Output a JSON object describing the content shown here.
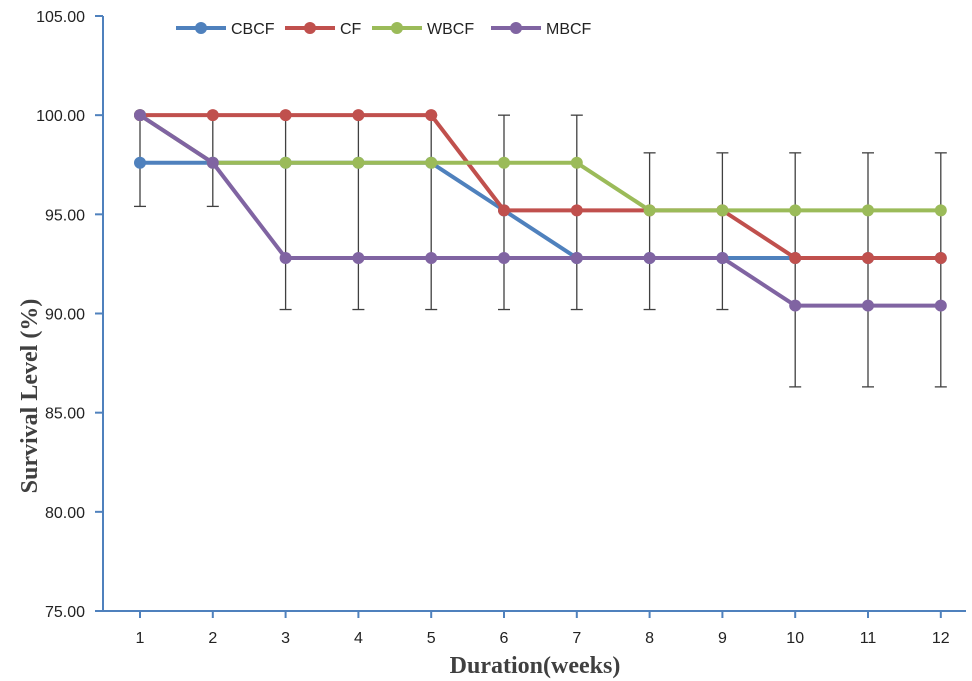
{
  "chart_data": {
    "type": "line",
    "title": "",
    "xlabel": "Duration(weeks)",
    "ylabel": "Survival Level (%)",
    "x": [
      1,
      2,
      3,
      4,
      5,
      6,
      7,
      8,
      9,
      10,
      11,
      12
    ],
    "x_tick_labels": [
      "1",
      "2",
      "3",
      "4",
      "5",
      "6",
      "7",
      "8",
      "9",
      "10",
      "11",
      "12"
    ],
    "ylim": [
      75,
      105
    ],
    "y_ticks": [
      75,
      80,
      85,
      90,
      95,
      100,
      105
    ],
    "y_tick_labels": [
      "75.00",
      "80.00",
      "85.00",
      "90.00",
      "95.00",
      "100.00",
      "105.00"
    ],
    "grid": false,
    "legend_position": "top",
    "series": [
      {
        "name": "CBCF",
        "color": "#4f81bd",
        "values": [
          97.6,
          97.6,
          97.6,
          97.6,
          97.6,
          95.2,
          92.8,
          92.8,
          92.8,
          92.8,
          92.8,
          92.8
        ]
      },
      {
        "name": "CF",
        "color": "#c0504d",
        "values": [
          100,
          100,
          100,
          100,
          100,
          95.2,
          95.2,
          95.2,
          95.2,
          92.8,
          92.8,
          92.8
        ]
      },
      {
        "name": "WBCF",
        "color": "#9bbb59",
        "values": [
          100,
          97.6,
          97.6,
          97.6,
          97.6,
          97.6,
          97.6,
          95.2,
          95.2,
          95.2,
          95.2,
          95.2
        ]
      },
      {
        "name": "MBCF",
        "color": "#8064a2",
        "values": [
          100,
          97.6,
          92.8,
          92.8,
          92.8,
          92.8,
          92.8,
          92.8,
          92.8,
          90.4,
          90.4,
          90.4
        ]
      }
    ],
    "error_bars": {
      "color": "#404040",
      "ranges": [
        [
          95.4,
          100.0
        ],
        [
          95.4,
          100.0
        ],
        [
          90.2,
          100.0
        ],
        [
          90.2,
          100.0
        ],
        [
          90.2,
          100.0
        ],
        [
          90.2,
          100.0
        ],
        [
          90.2,
          100.0
        ],
        [
          90.2,
          98.1
        ],
        [
          90.2,
          98.1
        ],
        [
          86.3,
          98.1
        ],
        [
          86.3,
          98.1
        ],
        [
          86.3,
          98.1
        ]
      ]
    }
  }
}
